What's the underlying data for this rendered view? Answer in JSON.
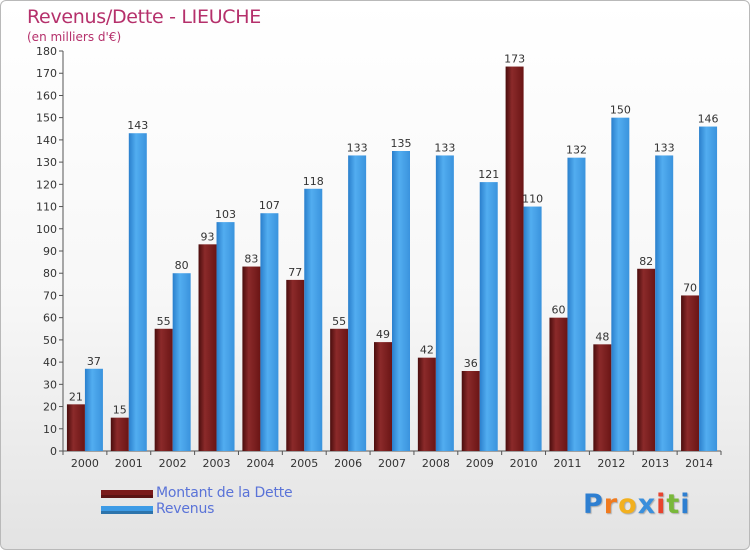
{
  "header": {
    "title": "Revenus/Dette - LIEUCHE",
    "subtitle": "(en milliers d'€)"
  },
  "legend": {
    "items": [
      {
        "label": "Montant de la Dette",
        "color": "#7a1a1a"
      },
      {
        "label": "Revenus",
        "color": "#3d9be6"
      }
    ]
  },
  "logo": {
    "text": "Proxiti",
    "letters": [
      {
        "ch": "P",
        "color": "#2e7fd1"
      },
      {
        "ch": "r",
        "color": "#f07a1e"
      },
      {
        "ch": "o",
        "color": "#f2b01e"
      },
      {
        "ch": "x",
        "color": "#3a8fdc"
      },
      {
        "ch": "i",
        "color": "#e8432e"
      },
      {
        "ch": "t",
        "color": "#79b83a"
      },
      {
        "ch": "i",
        "color": "#2e7fd1"
      }
    ]
  },
  "chart_data": {
    "type": "bar",
    "title": "Revenus/Dette - LIEUCHE",
    "subtitle": "(en milliers d'€)",
    "categories": [
      "2000",
      "2001",
      "2002",
      "2003",
      "2004",
      "2005",
      "2006",
      "2007",
      "2008",
      "2009",
      "2010",
      "2011",
      "2012",
      "2013",
      "2014"
    ],
    "series": [
      {
        "name": "Montant de la Dette",
        "color": "#7a1a1a",
        "values": [
          21,
          15,
          55,
          93,
          83,
          77,
          55,
          49,
          42,
          36,
          173,
          60,
          48,
          82,
          70
        ]
      },
      {
        "name": "Revenus",
        "color": "#3d9be6",
        "values": [
          37,
          143,
          80,
          103,
          107,
          118,
          133,
          135,
          133,
          121,
          110,
          132,
          150,
          133,
          146
        ]
      }
    ],
    "ylim": [
      0,
      180
    ],
    "yticks": [
      0,
      10,
      20,
      30,
      40,
      50,
      60,
      70,
      80,
      90,
      100,
      110,
      120,
      130,
      140,
      150,
      160,
      170,
      180
    ],
    "grid": false,
    "legend_position": "bottom-left"
  }
}
